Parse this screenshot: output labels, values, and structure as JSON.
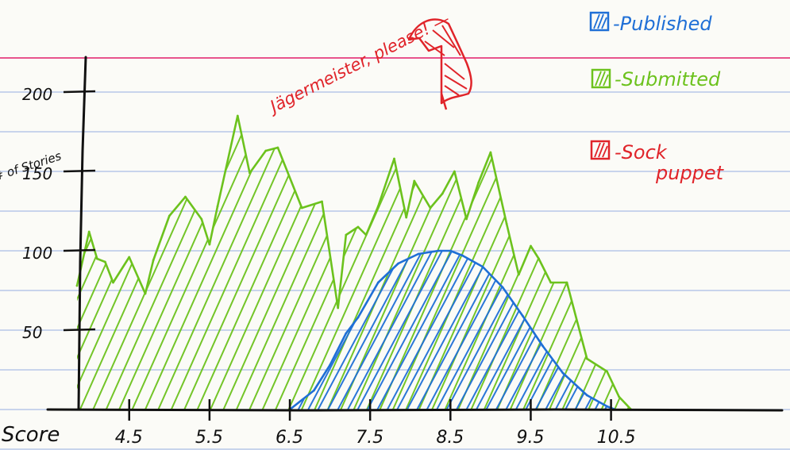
{
  "chart_data": {
    "type": "area",
    "title": "",
    "xlabel": "Score",
    "ylabel": "# of Stories",
    "xlim": [
      3.85,
      10.85
    ],
    "ylim": [
      0,
      200
    ],
    "x_ticks": [
      "4.5",
      "5.5",
      "6.5",
      "7.5",
      "8.5",
      "9.5",
      "10.5"
    ],
    "y_ticks": [
      "50",
      "100",
      "150",
      "200"
    ],
    "legend": [
      {
        "label": "-Published",
        "color": "#1f6fd6"
      },
      {
        "label": "-Submitted",
        "color": "#6cc21d"
      },
      {
        "label": "-Sock puppet",
        "color": "#e0242a"
      }
    ],
    "annotation": "Jägermeister, please! —",
    "series": [
      {
        "name": "Submitted",
        "color": "#6cc21d",
        "x": [
          3.85,
          4.0,
          4.1,
          4.2,
          4.3,
          4.5,
          4.7,
          4.8,
          5.0,
          5.2,
          5.4,
          5.5,
          5.6,
          5.85,
          6.0,
          6.2,
          6.35,
          6.65,
          6.9,
          7.1,
          7.2,
          7.35,
          7.45,
          7.6,
          7.8,
          7.95,
          8.05,
          8.25,
          8.4,
          8.55,
          8.7,
          8.85,
          9.0,
          9.2,
          9.35,
          9.5,
          9.6,
          9.75,
          9.95,
          10.2,
          10.45,
          10.6,
          10.75
        ],
        "y": [
          78,
          112,
          95,
          93,
          80,
          96,
          73,
          94,
          122,
          134,
          120,
          104,
          128,
          185,
          149,
          163,
          165,
          127,
          131,
          64,
          110,
          115,
          110,
          128,
          158,
          121,
          144,
          127,
          136,
          150,
          120,
          143,
          162,
          117,
          85,
          103,
          95,
          80,
          80,
          32,
          24,
          8,
          0
        ]
      },
      {
        "name": "Published",
        "color": "#1f6fd6",
        "x": [
          6.5,
          6.8,
          7.0,
          7.2,
          7.35,
          7.6,
          7.85,
          8.1,
          8.35,
          8.5,
          8.65,
          8.9,
          9.15,
          9.4,
          9.65,
          9.9,
          10.2,
          10.45,
          10.55
        ],
        "y": [
          0,
          12,
          28,
          48,
          58,
          80,
          92,
          98,
          100,
          100,
          97,
          90,
          77,
          59,
          40,
          23,
          9,
          2,
          0
        ]
      }
    ]
  }
}
